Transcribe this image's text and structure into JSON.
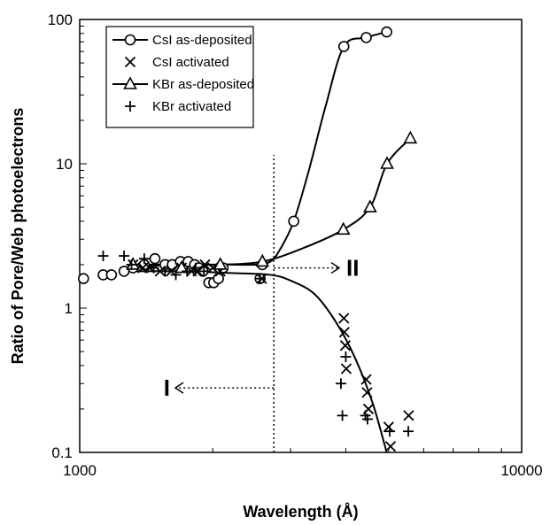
{
  "chart_data": {
    "type": "scatter",
    "title": "",
    "xlabel": "Wavelength (Å)",
    "ylabel": "Ratio of Pore/Web photoelectrons",
    "xscale": "log",
    "yscale": "log",
    "xlim": [
      1000,
      10000
    ],
    "ylim": [
      0.1,
      100
    ],
    "xticks": [
      "1000",
      "10000"
    ],
    "yticks": [
      "0.1",
      "1",
      "10",
      "100"
    ],
    "grid": false,
    "legend_position": "top-left",
    "vline_x": 2750,
    "region_labels": [
      {
        "text": "I",
        "arrow": "left",
        "y": 0.28
      },
      {
        "text": "II",
        "arrow": "right",
        "y": 1.9
      }
    ],
    "series": [
      {
        "name": "CsI as-deposited",
        "marker": "circle",
        "line": true,
        "x": [
          1020,
          1130,
          1180,
          1260,
          1320,
          1400,
          1480,
          1560,
          1620,
          1690,
          1760,
          1820,
          1860,
          1900,
          1960,
          2010,
          2060,
          2110,
          2560,
          2590,
          3050,
          3960,
          4450,
          4950
        ],
        "y": [
          1.6,
          1.7,
          1.7,
          1.8,
          1.9,
          2.0,
          2.2,
          2.0,
          2.0,
          2.1,
          2.1,
          2.0,
          1.9,
          1.8,
          1.5,
          1.5,
          1.6,
          1.9,
          1.6,
          2.0,
          4.0,
          65,
          75,
          82
        ],
        "curve_x": [
          1320,
          1600,
          1900,
          2200,
          2500,
          2700,
          2850,
          3050,
          3300,
          3600,
          3960,
          4450,
          4950
        ],
        "curve_y": [
          1.9,
          2.0,
          2.0,
          2.0,
          2.0,
          2.1,
          2.6,
          4.0,
          9,
          25,
          65,
          75,
          82
        ]
      },
      {
        "name": "CsI activated",
        "marker": "x",
        "line": false,
        "x": [
          1320,
          1390,
          1440,
          1520,
          1610,
          1700,
          1790,
          1850,
          1920,
          2000,
          2080,
          2580,
          3960,
          3970,
          3990,
          4010,
          4450,
          4470,
          4500,
          5000,
          5050,
          5550
        ],
        "y": [
          2.0,
          1.9,
          1.9,
          1.8,
          1.8,
          1.9,
          1.8,
          1.8,
          2.0,
          1.9,
          1.8,
          1.6,
          0.85,
          0.68,
          0.55,
          0.38,
          0.32,
          0.26,
          0.2,
          0.15,
          0.11,
          0.18
        ],
        "curve_x": [
          1320,
          1700,
          2200,
          2700,
          3000,
          3400,
          3800,
          4200,
          4600,
          4950
        ],
        "curve_y": [
          1.8,
          1.8,
          1.75,
          1.7,
          1.55,
          1.25,
          0.8,
          0.45,
          0.22,
          0.1
        ]
      },
      {
        "name": "KBr as-deposited",
        "marker": "triangle",
        "line": true,
        "x": [
          1320,
          1700,
          2080,
          2590,
          3950,
          4540,
          4960,
          5600
        ],
        "y": [
          2.0,
          1.9,
          2.0,
          2.1,
          3.5,
          5.0,
          10,
          15
        ],
        "curve_x": [
          1320,
          1700,
          2080,
          2590,
          3200,
          3950,
          4540,
          4960,
          5600
        ],
        "curve_y": [
          2.0,
          2.0,
          2.0,
          2.1,
          2.6,
          3.5,
          5.0,
          10,
          15
        ]
      },
      {
        "name": "KBr activated",
        "marker": "plus",
        "line": false,
        "x": [
          1130,
          1260,
          1310,
          1400,
          1470,
          1560,
          1650,
          1750,
          1830,
          1910,
          2560,
          3900,
          3930,
          4000,
          4430,
          4480,
          5030,
          5540
        ],
        "y": [
          2.3,
          2.3,
          2.0,
          2.2,
          1.9,
          1.8,
          1.7,
          1.8,
          1.9,
          1.8,
          1.6,
          0.3,
          0.18,
          0.46,
          0.18,
          0.17,
          0.14,
          0.14
        ]
      }
    ]
  }
}
